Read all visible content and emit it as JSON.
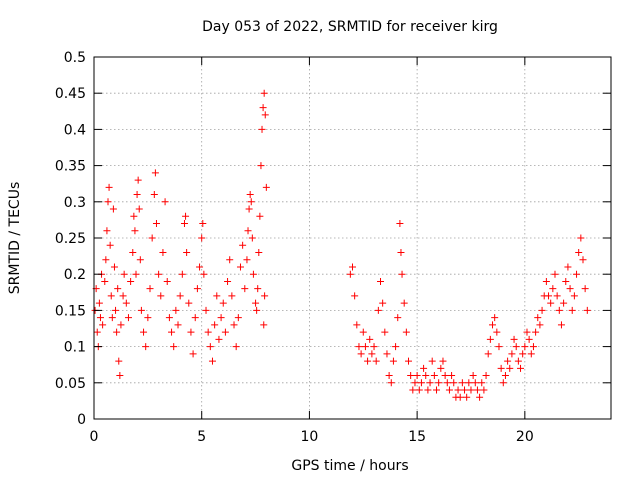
{
  "chart_data": {
    "type": "scatter",
    "title": "Day 053 of 2022, SRMTID for receiver kirg",
    "xlabel": "GPS time / hours",
    "ylabel": "SRMTID / TECUs",
    "xlim": [
      0,
      24
    ],
    "ylim": [
      0,
      0.5
    ],
    "xticks": [
      0,
      5,
      10,
      15,
      20
    ],
    "xtick_labels": [
      "0",
      "5",
      "10",
      "15",
      "20"
    ],
    "yticks": [
      0,
      0.05,
      0.1,
      0.15,
      0.2,
      0.25,
      0.3,
      0.35,
      0.4,
      0.45,
      0.5
    ],
    "ytick_labels": [
      "0",
      "0.05",
      "0.1",
      "0.15",
      "0.2",
      "0.25",
      "0.3",
      "0.35",
      "0.4",
      "0.45",
      "0.5"
    ],
    "grid": true,
    "marker": "plus",
    "color": "#ff0000",
    "series": [
      {
        "name": "SRMTID",
        "points": [
          [
            0.05,
            0.15
          ],
          [
            0.1,
            0.18
          ],
          [
            0.15,
            0.12
          ],
          [
            0.2,
            0.1
          ],
          [
            0.25,
            0.16
          ],
          [
            0.3,
            0.14
          ],
          [
            0.35,
            0.2
          ],
          [
            0.4,
            0.13
          ],
          [
            0.5,
            0.19
          ],
          [
            0.55,
            0.22
          ],
          [
            0.6,
            0.26
          ],
          [
            0.65,
            0.3
          ],
          [
            0.7,
            0.32
          ],
          [
            0.75,
            0.24
          ],
          [
            0.8,
            0.17
          ],
          [
            0.85,
            0.14
          ],
          [
            0.9,
            0.29
          ],
          [
            0.95,
            0.21
          ],
          [
            1.0,
            0.15
          ],
          [
            1.05,
            0.12
          ],
          [
            1.1,
            0.18
          ],
          [
            1.15,
            0.08
          ],
          [
            1.2,
            0.06
          ],
          [
            1.25,
            0.13
          ],
          [
            1.35,
            0.17
          ],
          [
            1.4,
            0.2
          ],
          [
            1.5,
            0.16
          ],
          [
            1.6,
            0.14
          ],
          [
            1.7,
            0.19
          ],
          [
            1.8,
            0.23
          ],
          [
            1.85,
            0.28
          ],
          [
            1.9,
            0.26
          ],
          [
            1.95,
            0.2
          ],
          [
            2.0,
            0.31
          ],
          [
            2.05,
            0.33
          ],
          [
            2.1,
            0.29
          ],
          [
            2.15,
            0.22
          ],
          [
            2.2,
            0.15
          ],
          [
            2.3,
            0.12
          ],
          [
            2.4,
            0.1
          ],
          [
            2.5,
            0.14
          ],
          [
            2.6,
            0.18
          ],
          [
            2.7,
            0.25
          ],
          [
            2.8,
            0.31
          ],
          [
            2.85,
            0.34
          ],
          [
            2.9,
            0.27
          ],
          [
            3.0,
            0.2
          ],
          [
            3.1,
            0.17
          ],
          [
            3.2,
            0.23
          ],
          [
            3.3,
            0.3
          ],
          [
            3.4,
            0.19
          ],
          [
            3.5,
            0.14
          ],
          [
            3.6,
            0.12
          ],
          [
            3.7,
            0.1
          ],
          [
            3.8,
            0.15
          ],
          [
            3.9,
            0.13
          ],
          [
            4.0,
            0.17
          ],
          [
            4.1,
            0.2
          ],
          [
            4.2,
            0.27
          ],
          [
            4.25,
            0.28
          ],
          [
            4.3,
            0.23
          ],
          [
            4.4,
            0.16
          ],
          [
            4.5,
            0.12
          ],
          [
            4.6,
            0.09
          ],
          [
            4.7,
            0.14
          ],
          [
            4.8,
            0.18
          ],
          [
            4.9,
            0.21
          ],
          [
            5.0,
            0.25
          ],
          [
            5.05,
            0.27
          ],
          [
            5.1,
            0.2
          ],
          [
            5.2,
            0.15
          ],
          [
            5.3,
            0.12
          ],
          [
            5.4,
            0.1
          ],
          [
            5.5,
            0.08
          ],
          [
            5.6,
            0.13
          ],
          [
            5.7,
            0.17
          ],
          [
            5.8,
            0.11
          ],
          [
            5.9,
            0.14
          ],
          [
            6.0,
            0.16
          ],
          [
            6.1,
            0.12
          ],
          [
            6.2,
            0.19
          ],
          [
            6.3,
            0.22
          ],
          [
            6.4,
            0.17
          ],
          [
            6.5,
            0.13
          ],
          [
            6.6,
            0.1
          ],
          [
            6.7,
            0.14
          ],
          [
            6.8,
            0.21
          ],
          [
            6.9,
            0.24
          ],
          [
            7.0,
            0.18
          ],
          [
            7.1,
            0.22
          ],
          [
            7.15,
            0.26
          ],
          [
            7.2,
            0.29
          ],
          [
            7.25,
            0.31
          ],
          [
            7.3,
            0.3
          ],
          [
            7.35,
            0.25
          ],
          [
            7.4,
            0.2
          ],
          [
            7.5,
            0.16
          ],
          [
            7.55,
            0.15
          ],
          [
            7.6,
            0.18
          ],
          [
            7.65,
            0.23
          ],
          [
            7.7,
            0.28
          ],
          [
            7.75,
            0.35
          ],
          [
            7.8,
            0.4
          ],
          [
            7.85,
            0.43
          ],
          [
            7.9,
            0.45
          ],
          [
            7.95,
            0.42
          ],
          [
            8.0,
            0.32
          ],
          [
            7.92,
            0.17
          ],
          [
            7.88,
            0.13
          ],
          [
            11.9,
            0.2
          ],
          [
            12.0,
            0.21
          ],
          [
            12.1,
            0.17
          ],
          [
            12.2,
            0.13
          ],
          [
            12.3,
            0.1
          ],
          [
            12.4,
            0.09
          ],
          [
            12.5,
            0.12
          ],
          [
            12.6,
            0.1
          ],
          [
            12.7,
            0.08
          ],
          [
            12.8,
            0.11
          ],
          [
            12.9,
            0.09
          ],
          [
            13.0,
            0.1
          ],
          [
            13.1,
            0.08
          ],
          [
            13.2,
            0.15
          ],
          [
            13.3,
            0.19
          ],
          [
            13.4,
            0.16
          ],
          [
            13.5,
            0.12
          ],
          [
            13.6,
            0.09
          ],
          [
            13.7,
            0.06
          ],
          [
            13.8,
            0.05
          ],
          [
            13.9,
            0.08
          ],
          [
            14.0,
            0.1
          ],
          [
            14.1,
            0.14
          ],
          [
            14.2,
            0.27
          ],
          [
            14.25,
            0.23
          ],
          [
            14.3,
            0.2
          ],
          [
            14.4,
            0.16
          ],
          [
            14.5,
            0.12
          ],
          [
            14.6,
            0.08
          ],
          [
            14.7,
            0.06
          ],
          [
            14.8,
            0.04
          ],
          [
            14.9,
            0.05
          ],
          [
            15.0,
            0.06
          ],
          [
            15.1,
            0.04
          ],
          [
            15.2,
            0.05
          ],
          [
            15.3,
            0.07
          ],
          [
            15.4,
            0.06
          ],
          [
            15.5,
            0.04
          ],
          [
            15.6,
            0.05
          ],
          [
            15.7,
            0.08
          ],
          [
            15.8,
            0.06
          ],
          [
            15.9,
            0.04
          ],
          [
            16.0,
            0.05
          ],
          [
            16.1,
            0.07
          ],
          [
            16.2,
            0.08
          ],
          [
            16.3,
            0.06
          ],
          [
            16.4,
            0.05
          ],
          [
            16.5,
            0.04
          ],
          [
            16.6,
            0.06
          ],
          [
            16.7,
            0.05
          ],
          [
            16.8,
            0.03
          ],
          [
            16.9,
            0.04
          ],
          [
            17.0,
            0.03
          ],
          [
            17.1,
            0.05
          ],
          [
            17.2,
            0.04
          ],
          [
            17.3,
            0.03
          ],
          [
            17.4,
            0.05
          ],
          [
            17.5,
            0.04
          ],
          [
            17.6,
            0.06
          ],
          [
            17.7,
            0.05
          ],
          [
            17.8,
            0.04
          ],
          [
            17.9,
            0.03
          ],
          [
            18.0,
            0.05
          ],
          [
            18.1,
            0.04
          ],
          [
            18.2,
            0.06
          ],
          [
            18.3,
            0.09
          ],
          [
            18.4,
            0.11
          ],
          [
            18.5,
            0.13
          ],
          [
            18.6,
            0.14
          ],
          [
            18.7,
            0.12
          ],
          [
            18.8,
            0.1
          ],
          [
            18.9,
            0.07
          ],
          [
            19.0,
            0.05
          ],
          [
            19.1,
            0.06
          ],
          [
            19.2,
            0.08
          ],
          [
            19.3,
            0.07
          ],
          [
            19.4,
            0.09
          ],
          [
            19.5,
            0.11
          ],
          [
            19.6,
            0.1
          ],
          [
            19.7,
            0.08
          ],
          [
            19.8,
            0.07
          ],
          [
            19.9,
            0.09
          ],
          [
            20.0,
            0.1
          ],
          [
            20.1,
            0.12
          ],
          [
            20.2,
            0.11
          ],
          [
            20.3,
            0.09
          ],
          [
            20.4,
            0.1
          ],
          [
            20.5,
            0.12
          ],
          [
            20.6,
            0.14
          ],
          [
            20.7,
            0.13
          ],
          [
            20.8,
            0.15
          ],
          [
            20.9,
            0.17
          ],
          [
            21.0,
            0.19
          ],
          [
            21.1,
            0.17
          ],
          [
            21.2,
            0.16
          ],
          [
            21.3,
            0.18
          ],
          [
            21.4,
            0.2
          ],
          [
            21.5,
            0.17
          ],
          [
            21.6,
            0.15
          ],
          [
            21.7,
            0.13
          ],
          [
            21.8,
            0.16
          ],
          [
            21.9,
            0.19
          ],
          [
            22.0,
            0.21
          ],
          [
            22.1,
            0.18
          ],
          [
            22.2,
            0.15
          ],
          [
            22.3,
            0.17
          ],
          [
            22.4,
            0.2
          ],
          [
            22.5,
            0.23
          ],
          [
            22.6,
            0.25
          ],
          [
            22.7,
            0.22
          ],
          [
            22.8,
            0.18
          ],
          [
            22.9,
            0.15
          ]
        ]
      }
    ]
  }
}
